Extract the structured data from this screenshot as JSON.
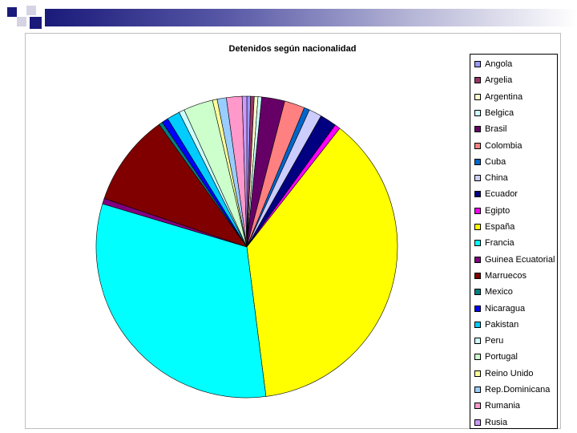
{
  "chart_data": {
    "type": "pie",
    "title": "Detenidos según nacionalidad",
    "legend_position": "right",
    "categories": [
      "Angola",
      "Argelia",
      "Argentina",
      "Belgica",
      "Brasil",
      "Colombia",
      "Cuba",
      "China",
      "Ecuador",
      "Egipto",
      "España",
      "Francia",
      "Guinea Ecuatorial",
      "Marruecos",
      "Mexico",
      "Nicaragua",
      "Pakistan",
      "Peru",
      "Portugal",
      "Reino Unido",
      "Rep.Dominicana",
      "Rumania",
      "Rusia"
    ],
    "values": [
      0.4,
      0.4,
      0.4,
      0.4,
      2.5,
      2.2,
      0.6,
      1.4,
      1.8,
      0.6,
      37.8,
      32.0,
      0.6,
      10.0,
      0.4,
      0.7,
      1.4,
      0.6,
      3.2,
      0.5,
      1.0,
      1.7,
      0.5
    ],
    "colors": [
      "#9999ff",
      "#993366",
      "#ffffcc",
      "#ccffff",
      "#660066",
      "#ff8080",
      "#0066cc",
      "#ccccff",
      "#000080",
      "#ff00ff",
      "#ffff00",
      "#00ffff",
      "#800080",
      "#800000",
      "#008080",
      "#0000ff",
      "#00ccff",
      "#ccffff",
      "#ccffcc",
      "#ffff99",
      "#99ccff",
      "#ff99cc",
      "#cc99ff"
    ]
  }
}
